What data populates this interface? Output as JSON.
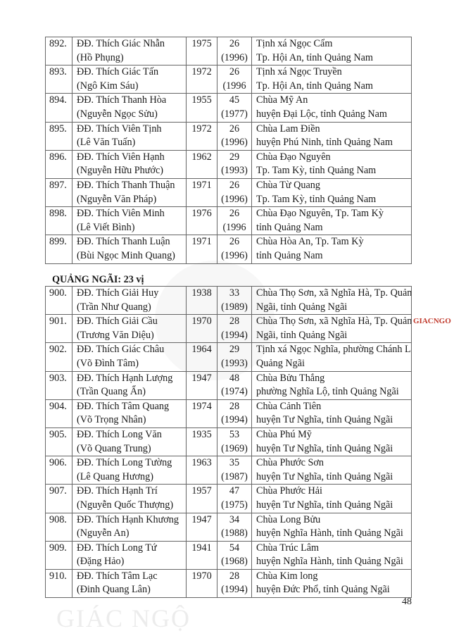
{
  "table1": [
    {
      "no": "892.",
      "name": "ĐĐ. Thích Giác Nhẫn",
      "secular": "(Hồ Phụng)",
      "year": "1975",
      "age": "26",
      "age_year": "(1996)",
      "place1": "Tịnh xá Ngọc Cẩm",
      "place2": "Tp. Hội An, tỉnh Quảng Nam"
    },
    {
      "no": "893.",
      "name": "ĐĐ. Thích Giác Tấn",
      "secular": "(Ngô Kim Sáu)",
      "year": "1972",
      "age": "26",
      "age_year": "(1996",
      "place1": "Tịnh xá Ngọc Truyền",
      "place2": "Tp. Hội An, tỉnh Quảng Nam"
    },
    {
      "no": "894.",
      "name": "ĐĐ. Thích Thanh Hòa",
      "secular": "(Nguyễn Ngọc Sửu)",
      "year": "1955",
      "age": "45",
      "age_year": "(1977)",
      "place1": "Chùa Mỹ An",
      "place2": "huyện Đại Lộc, tỉnh Quảng Nam"
    },
    {
      "no": "895.",
      "name": "ĐĐ. Thích Viên Tịnh",
      "secular": "(Lê Văn Tuấn)",
      "year": "1972",
      "age": "26",
      "age_year": "(1996)",
      "place1": "Chùa Lam Điền",
      "place2": "huyện Phú Ninh, tỉnh Quảng Nam"
    },
    {
      "no": "896.",
      "name": "ĐĐ. Thích Viên Hạnh",
      "secular": "(Nguyễn Hữu Phước)",
      "year": "1962",
      "age": "29",
      "age_year": "(1993)",
      "place1": "Chùa Đạo Nguyên",
      "place2": "Tp. Tam Kỳ, tỉnh Quảng Nam"
    },
    {
      "no": "897.",
      "name": "ĐĐ. Thích Thanh Thuận",
      "secular": "(Nguyễn Văn Pháp)",
      "year": "1971",
      "age": "26",
      "age_year": "(1996)",
      "place1": "Chùa Từ Quang",
      "place2": "Tp. Tam Kỳ, tỉnh Quảng Nam"
    },
    {
      "no": "898.",
      "name": "ĐĐ. Thích Viên Minh",
      "secular": "(Lê Viết Bình)",
      "year": "1976",
      "age": "26",
      "age_year": "(1996",
      "place1": "Chùa Đạo Nguyên, Tp. Tam Kỳ",
      "place2": "tỉnh Quảng Nam"
    },
    {
      "no": "899.",
      "name": "ĐĐ. Thích Thanh Luận",
      "secular": "(Bùi Ngọc Minh Quang)",
      "year": "1971",
      "age": "26",
      "age_year": "(1996)",
      "place1": "Chùa Hòa An, Tp. Tam Kỳ",
      "place2": "tỉnh Quảng Nam"
    }
  ],
  "section_heading": "QUẢNG NGÃI: 23 vị",
  "table2": [
    {
      "no": "900.",
      "name": "ĐĐ. Thích Giải Huy",
      "secular": "(Trần Như Quang)",
      "year": "1938",
      "age": "33",
      "age_year": "(1989)",
      "place1": "Chùa Thọ Sơn, xã Nghĩa Hà, Tp. Quảng",
      "place2": "Ngãi, tỉnh Quảng Ngãi"
    },
    {
      "no": "901.",
      "name": "ĐĐ. Thích Giải Cầu",
      "secular": "(Trương Văn Diệu)",
      "year": "1970",
      "age": "28",
      "age_year": "(1994)",
      "place1": "Chùa Thọ Sơn, xã Nghĩa Hà, Tp. Quảng",
      "place2": "Ngãi, tỉnh Quảng Ngãi"
    },
    {
      "no": "902.",
      "name": "ĐĐ. Thích Giác Châu",
      "secular": "(Võ Đình Tâm)",
      "year": "1964",
      "age": "29",
      "age_year": "(1993)",
      "place1": "Tịnh xá Ngọc Nghĩa, phường Chánh Lộ,",
      "place2": "Quảng Ngãi"
    },
    {
      "no": "903.",
      "name": "ĐĐ. Thích Hạnh Lượng",
      "secular": "(Trần Quang Ẩn)",
      "year": "1947",
      "age": "48",
      "age_year": "(1974)",
      "place1": "Chùa Bửu Thắng",
      "place2": "phường Nghĩa Lộ, tỉnh Quảng Ngãi"
    },
    {
      "no": "904.",
      "name": "ĐĐ. Thích Tâm Quang",
      "secular": "(Võ Trọng Nhân)",
      "year": "1974",
      "age": "28",
      "age_year": "(1994)",
      "place1": "Chùa Cảnh Tiên",
      "place2": "huyện Tư Nghĩa, tỉnh Quảng Ngãi"
    },
    {
      "no": "905.",
      "name": "ĐĐ. Thích Long Văn",
      "secular": "(Võ Quang Trung)",
      "year": "1935",
      "age": "53",
      "age_year": "(1969)",
      "place1": "Chùa Phú Mỹ",
      "place2": "huyện Tư Nghĩa, tỉnh Quảng Ngãi"
    },
    {
      "no": "906.",
      "name": "ĐĐ. Thích Long Tường",
      "secular": "(Lê Quang Hương)",
      "year": "1963",
      "age": "35",
      "age_year": "(1987)",
      "place1": "Chùa Phước Sơn",
      "place2": "huyện Tư Nghĩa, tỉnh Quảng Ngãi"
    },
    {
      "no": "907.",
      "name": "ĐĐ. Thích Hạnh Trí",
      "secular": "(Nguyễn Quốc Thượng)",
      "year": "1957",
      "age": "47",
      "age_year": "(1975)",
      "place1": "Chùa Phước Hải",
      "place2": "huyện Tư Nghĩa, tỉnh Quảng Ngãi"
    },
    {
      "no": "908.",
      "name": "ĐĐ. Thích Hạnh Khương",
      "secular": "(Nguyễn An)",
      "year": "1947",
      "age": "34",
      "age_year": "(1988)",
      "place1": "Chùa Long Bửu",
      "place2": "huyện Nghĩa Hành, tỉnh Quảng Ngãi"
    },
    {
      "no": "909.",
      "name": "ĐĐ. Thích Long Tứ",
      "secular": "(Đặng Hảo)",
      "year": "1941",
      "age": "54",
      "age_year": "(1968)",
      "place1": "Chùa Trúc Lâm",
      "place2": "huyện Nghĩa Hành, tỉnh Quảng Ngãi"
    },
    {
      "no": "910.",
      "name": "ĐĐ. Thích Tâm Lạc",
      "secular": "(Đinh Quang Lân)",
      "year": "1970",
      "age": "28",
      "age_year": "(1994)",
      "place1": "Chùa Kim long",
      "place2": "huyện Đức Phổ, tỉnh Quảng Ngãi"
    }
  ],
  "page_number": "48",
  "watermark": "GIÁC NGỘ",
  "watermark_red": "GIACNGO",
  "colors": {
    "border": "#666666",
    "watermark_red": "#c0392b"
  }
}
